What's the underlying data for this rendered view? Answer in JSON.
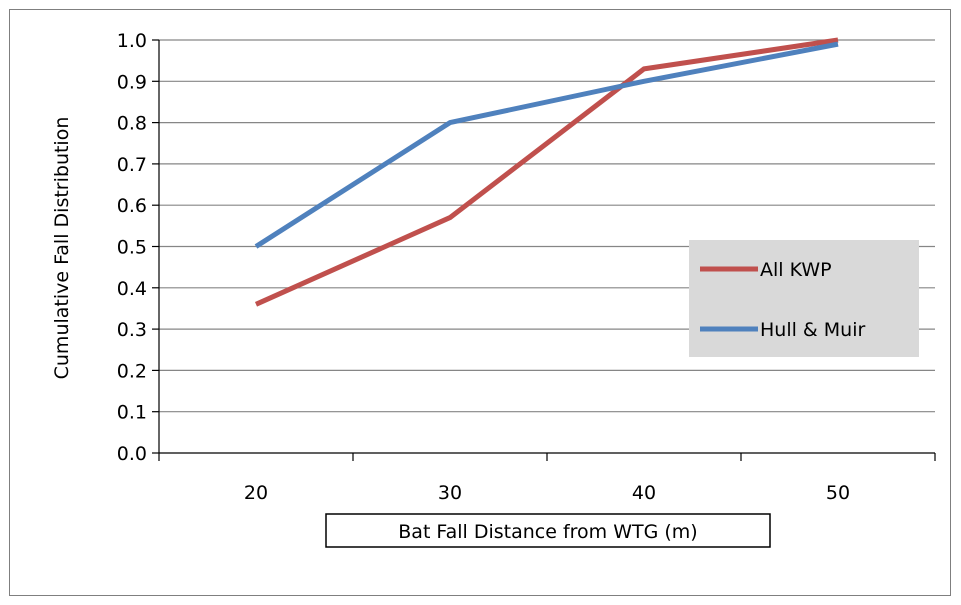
{
  "chart_data": {
    "type": "line",
    "title": "",
    "xlabel": "Bat Fall Distance from WTG (m)",
    "ylabel": "Cumulative Fall Distribution",
    "categories": [
      "20",
      "30",
      "40",
      "50"
    ],
    "ylim": [
      0,
      1.0
    ],
    "y_ticks": [
      "0.0",
      "0.1",
      "0.2",
      "0.3",
      "0.4",
      "0.5",
      "0.6",
      "0.7",
      "0.8",
      "0.9",
      "1.0"
    ],
    "grid": "horizontal",
    "legend_position": "right",
    "series": [
      {
        "name": "All KWP",
        "color": "#c0504d",
        "values": [
          0.36,
          0.57,
          0.93,
          1.0
        ]
      },
      {
        "name": "Hull & Muir",
        "color": "#4f81bd",
        "values": [
          0.5,
          0.8,
          0.9,
          0.99
        ]
      }
    ]
  }
}
